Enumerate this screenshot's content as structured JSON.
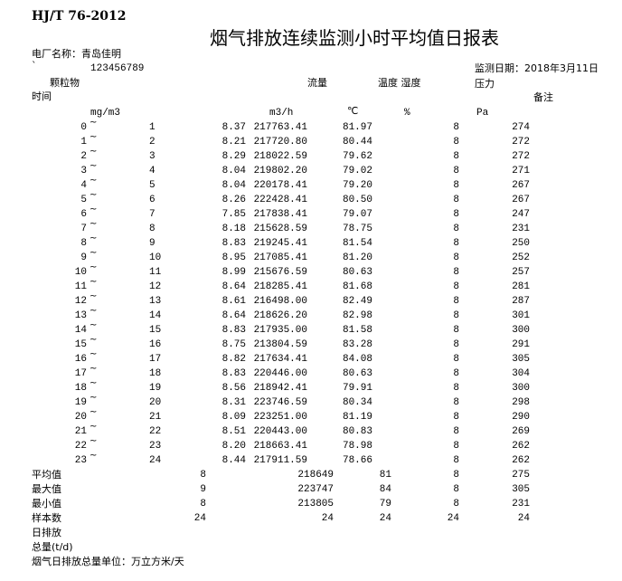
{
  "header": {
    "standard": "HJ/T 76-2012",
    "title": "烟气排放连续监测小时平均值日报表",
    "plant_label": "电厂名称：青岛佳明",
    "mark": "`",
    "code": "123456789",
    "date_label": "监测日期：2018年3月11日"
  },
  "columns": {
    "particulate": "颗粒物",
    "flow": "流量",
    "temp_humidity": "温度 湿度",
    "pressure": "压力",
    "time": "时间",
    "remark": "备注",
    "unit_particulate": "mg/m3",
    "unit_flow": "m3/h",
    "unit_temp": "℃",
    "unit_humidity": "%",
    "unit_pressure": "Pa"
  },
  "tilde": "~",
  "rows": [
    {
      "start": "0",
      "end": "1",
      "pm": "8.37",
      "flow": "217763.41",
      "temp": "81.97",
      "hum": "8",
      "pres": "274"
    },
    {
      "start": "1",
      "end": "2",
      "pm": "8.21",
      "flow": "217720.80",
      "temp": "80.44",
      "hum": "8",
      "pres": "272"
    },
    {
      "start": "2",
      "end": "3",
      "pm": "8.29",
      "flow": "218022.59",
      "temp": "79.62",
      "hum": "8",
      "pres": "272"
    },
    {
      "start": "3",
      "end": "4",
      "pm": "8.04",
      "flow": "219802.20",
      "temp": "79.02",
      "hum": "8",
      "pres": "271"
    },
    {
      "start": "4",
      "end": "5",
      "pm": "8.04",
      "flow": "220178.41",
      "temp": "79.20",
      "hum": "8",
      "pres": "267"
    },
    {
      "start": "5",
      "end": "6",
      "pm": "8.26",
      "flow": "222428.41",
      "temp": "80.50",
      "hum": "8",
      "pres": "267"
    },
    {
      "start": "6",
      "end": "7",
      "pm": "7.85",
      "flow": "217838.41",
      "temp": "79.07",
      "hum": "8",
      "pres": "247"
    },
    {
      "start": "7",
      "end": "8",
      "pm": "8.18",
      "flow": "215628.59",
      "temp": "78.75",
      "hum": "8",
      "pres": "231"
    },
    {
      "start": "8",
      "end": "9",
      "pm": "8.83",
      "flow": "219245.41",
      "temp": "81.54",
      "hum": "8",
      "pres": "250"
    },
    {
      "start": "9",
      "end": "10",
      "pm": "8.95",
      "flow": "217085.41",
      "temp": "81.20",
      "hum": "8",
      "pres": "252"
    },
    {
      "start": "10",
      "end": "11",
      "pm": "8.99",
      "flow": "215676.59",
      "temp": "80.63",
      "hum": "8",
      "pres": "257"
    },
    {
      "start": "11",
      "end": "12",
      "pm": "8.64",
      "flow": "218285.41",
      "temp": "81.68",
      "hum": "8",
      "pres": "281"
    },
    {
      "start": "12",
      "end": "13",
      "pm": "8.61",
      "flow": "216498.00",
      "temp": "82.49",
      "hum": "8",
      "pres": "287"
    },
    {
      "start": "13",
      "end": "14",
      "pm": "8.64",
      "flow": "218626.20",
      "temp": "82.98",
      "hum": "8",
      "pres": "301"
    },
    {
      "start": "14",
      "end": "15",
      "pm": "8.83",
      "flow": "217935.00",
      "temp": "81.58",
      "hum": "8",
      "pres": "300"
    },
    {
      "start": "15",
      "end": "16",
      "pm": "8.75",
      "flow": "213804.59",
      "temp": "83.28",
      "hum": "8",
      "pres": "291"
    },
    {
      "start": "16",
      "end": "17",
      "pm": "8.82",
      "flow": "217634.41",
      "temp": "84.08",
      "hum": "8",
      "pres": "305"
    },
    {
      "start": "17",
      "end": "18",
      "pm": "8.83",
      "flow": "220446.00",
      "temp": "80.63",
      "hum": "8",
      "pres": "304"
    },
    {
      "start": "18",
      "end": "19",
      "pm": "8.56",
      "flow": "218942.41",
      "temp": "79.91",
      "hum": "8",
      "pres": "300"
    },
    {
      "start": "19",
      "end": "20",
      "pm": "8.31",
      "flow": "223746.59",
      "temp": "80.34",
      "hum": "8",
      "pres": "298"
    },
    {
      "start": "20",
      "end": "21",
      "pm": "8.09",
      "flow": "223251.00",
      "temp": "81.19",
      "hum": "8",
      "pres": "290"
    },
    {
      "start": "21",
      "end": "22",
      "pm": "8.51",
      "flow": "220443.00",
      "temp": "80.83",
      "hum": "8",
      "pres": "269"
    },
    {
      "start": "22",
      "end": "23",
      "pm": "8.20",
      "flow": "218663.41",
      "temp": "78.98",
      "hum": "8",
      "pres": "262"
    },
    {
      "start": "23",
      "end": "24",
      "pm": "8.44",
      "flow": "217911.59",
      "temp": "78.66",
      "hum": "8",
      "pres": "262"
    }
  ],
  "summary": [
    {
      "label": "平均值",
      "pm": "8",
      "flow": "218649",
      "temp": "81",
      "hum": "8",
      "pres": "275"
    },
    {
      "label": "最大值",
      "pm": "9",
      "flow": "223747",
      "temp": "84",
      "hum": "8",
      "pres": "305"
    },
    {
      "label": "最小值",
      "pm": "8",
      "flow": "213805",
      "temp": "79",
      "hum": "8",
      "pres": "231"
    },
    {
      "label": "样本数",
      "pm": "24",
      "flow": "24",
      "temp": "24",
      "hum": "24",
      "pres": "24"
    }
  ],
  "footer": {
    "daily_emission": "日排放",
    "total": "总量(t/d)",
    "unit_note": "烟气日排放总量单位：万立方米/天"
  }
}
